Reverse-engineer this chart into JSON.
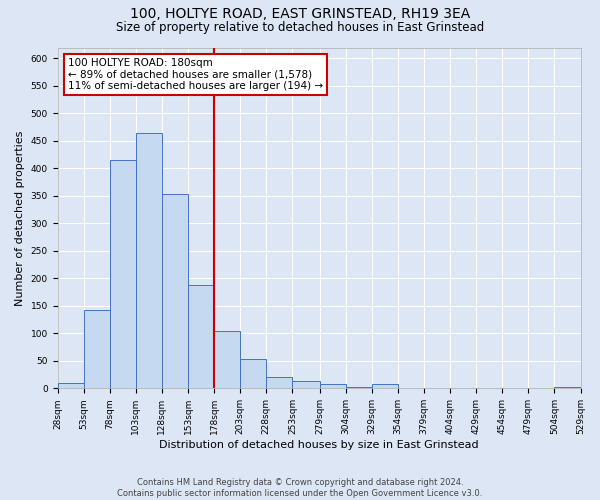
{
  "title": "100, HOLTYE ROAD, EAST GRINSTEAD, RH19 3EA",
  "subtitle": "Size of property relative to detached houses in East Grinstead",
  "xlabel": "Distribution of detached houses by size in East Grinstead",
  "ylabel": "Number of detached properties",
  "bin_edges": [
    28,
    53,
    78,
    103,
    128,
    153,
    178,
    203,
    228,
    253,
    279,
    304,
    329,
    354,
    379,
    404,
    429,
    454,
    479,
    504,
    529
  ],
  "bar_heights": [
    10,
    143,
    415,
    465,
    353,
    188,
    104,
    53,
    20,
    14,
    8,
    3,
    8,
    0,
    0,
    0,
    0,
    0,
    0,
    2
  ],
  "bar_color": "#c5d9f0",
  "bar_edge_color": "#4472c4",
  "vline_x": 178,
  "vline_color": "#cc0000",
  "annotation_title": "100 HOLTYE ROAD: 180sqm",
  "annotation_line1": "← 89% of detached houses are smaller (1,578)",
  "annotation_line2": "11% of semi-detached houses are larger (194) →",
  "annotation_box_color": "#ffffff",
  "annotation_box_edge": "#cc0000",
  "ylim": [
    0,
    620
  ],
  "yticks": [
    0,
    50,
    100,
    150,
    200,
    250,
    300,
    350,
    400,
    450,
    500,
    550,
    600
  ],
  "tick_labels": [
    "28sqm",
    "53sqm",
    "78sqm",
    "103sqm",
    "128sqm",
    "153sqm",
    "178sqm",
    "203sqm",
    "228sqm",
    "253sqm",
    "279sqm",
    "304sqm",
    "329sqm",
    "354sqm",
    "379sqm",
    "404sqm",
    "429sqm",
    "454sqm",
    "479sqm",
    "504sqm",
    "529sqm"
  ],
  "footer_line1": "Contains HM Land Registry data © Crown copyright and database right 2024.",
  "footer_line2": "Contains public sector information licensed under the Open Government Licence v3.0.",
  "fig_bg_color": "#dce6f5",
  "plot_bg_color": "#dce6f5",
  "grid_color": "#ffffff",
  "title_fontsize": 10,
  "subtitle_fontsize": 8.5,
  "axis_label_fontsize": 8,
  "tick_fontsize": 6.5,
  "footer_fontsize": 6,
  "annot_fontsize": 7.5
}
